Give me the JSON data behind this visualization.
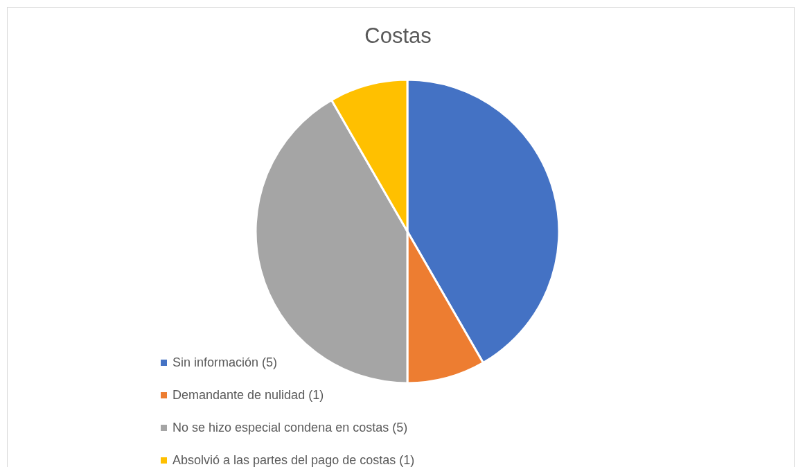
{
  "chart_data": {
    "type": "pie",
    "title": "Costas",
    "categories": [
      "Sin información (5)",
      "Demandante de nulidad (1)",
      "No se hizo especial condena en costas (5)",
      "Absolvió a las partes del pago de costas (1)"
    ],
    "values": [
      5,
      1,
      5,
      1
    ],
    "colors": [
      "#4472c4",
      "#ed7d31",
      "#a5a5a5",
      "#ffc000"
    ],
    "legend": "bottom left"
  }
}
